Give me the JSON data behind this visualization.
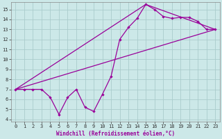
{
  "xlabel": "Windchill (Refroidissement éolien,°C)",
  "bg_color": "#cce8e8",
  "grid_color": "#aacccc",
  "line_color": "#990099",
  "xlim_min": -0.5,
  "xlim_max": 23.5,
  "ylim_min": 3.8,
  "ylim_max": 15.7,
  "xticks": [
    0,
    1,
    2,
    3,
    4,
    5,
    6,
    7,
    8,
    9,
    10,
    11,
    12,
    13,
    14,
    15,
    16,
    17,
    18,
    19,
    20,
    21,
    22,
    23
  ],
  "yticks": [
    4,
    5,
    6,
    7,
    8,
    9,
    10,
    11,
    12,
    13,
    14,
    15
  ],
  "series1_x": [
    0,
    1,
    2,
    3,
    4,
    5,
    6,
    7,
    8,
    9,
    10,
    11,
    12,
    13,
    14,
    15,
    16,
    17,
    18,
    19,
    20,
    21,
    22,
    23
  ],
  "series1_y": [
    7.0,
    7.0,
    7.0,
    7.0,
    6.2,
    4.5,
    6.2,
    7.0,
    5.2,
    4.8,
    6.5,
    8.3,
    12.0,
    13.2,
    14.1,
    15.5,
    15.0,
    14.3,
    14.1,
    14.2,
    14.2,
    13.8,
    13.0,
    13.0
  ],
  "series2_x": [
    0,
    23
  ],
  "series2_y": [
    7.0,
    13.0
  ],
  "series3_x": [
    0,
    15,
    23
  ],
  "series3_y": [
    7.0,
    15.5,
    13.0
  ],
  "tick_fontsize": 5.0,
  "xlabel_fontsize": 5.5,
  "marker_size": 2.2
}
